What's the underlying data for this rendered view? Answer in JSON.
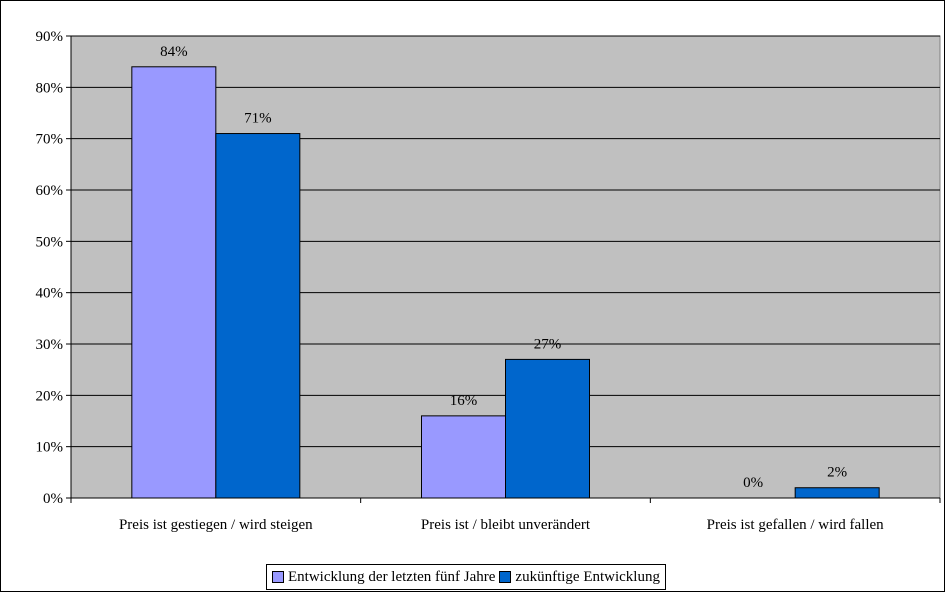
{
  "chart_data": {
    "type": "bar",
    "categories": [
      "Preis ist gestiegen / wird steigen",
      "Preis ist / bleibt unverändert",
      "Preis ist gefallen / wird fallen"
    ],
    "series": [
      {
        "name": "Entwicklung der letzten fünf Jahre",
        "color": "#9999ff",
        "values": [
          84,
          16,
          0
        ],
        "labels": [
          "84%",
          "16%",
          "0%"
        ]
      },
      {
        "name": "zukünftige Entwicklung",
        "color": "#0066cc",
        "values": [
          71,
          27,
          2
        ],
        "labels": [
          "71%",
          "27%",
          "2%"
        ]
      }
    ],
    "yaxis": {
      "ticks": [
        0,
        10,
        20,
        30,
        40,
        50,
        60,
        70,
        80,
        90
      ],
      "tick_labels": [
        "0%",
        "10%",
        "20%",
        "30%",
        "40%",
        "50%",
        "60%",
        "70%",
        "80%",
        "90%"
      ]
    },
    "ylim": [
      0,
      90
    ],
    "plot_background": "#c0c0c0",
    "grid": true,
    "legend_position": "bottom"
  }
}
